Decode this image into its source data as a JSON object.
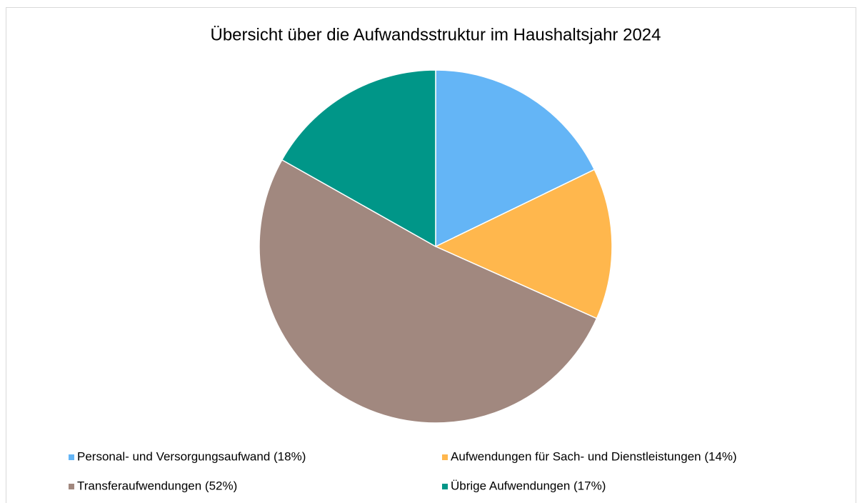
{
  "chart_data": {
    "type": "pie",
    "title": "Übersicht über die Aufwandsstruktur im Haushaltsjahr 2024",
    "categories": [
      "Personal- und Versorgungsaufwand (18%)",
      "Aufwendungen für Sach- und Dienstleistungen (14%)",
      "Transferaufwendungen (52%)",
      "Übrige Aufwendungen (17%)"
    ],
    "values": [
      18,
      14,
      52,
      17
    ],
    "colors": [
      "#64b5f6",
      "#ffb74d",
      "#a1887f",
      "#009688"
    ],
    "legend": "bottom"
  }
}
